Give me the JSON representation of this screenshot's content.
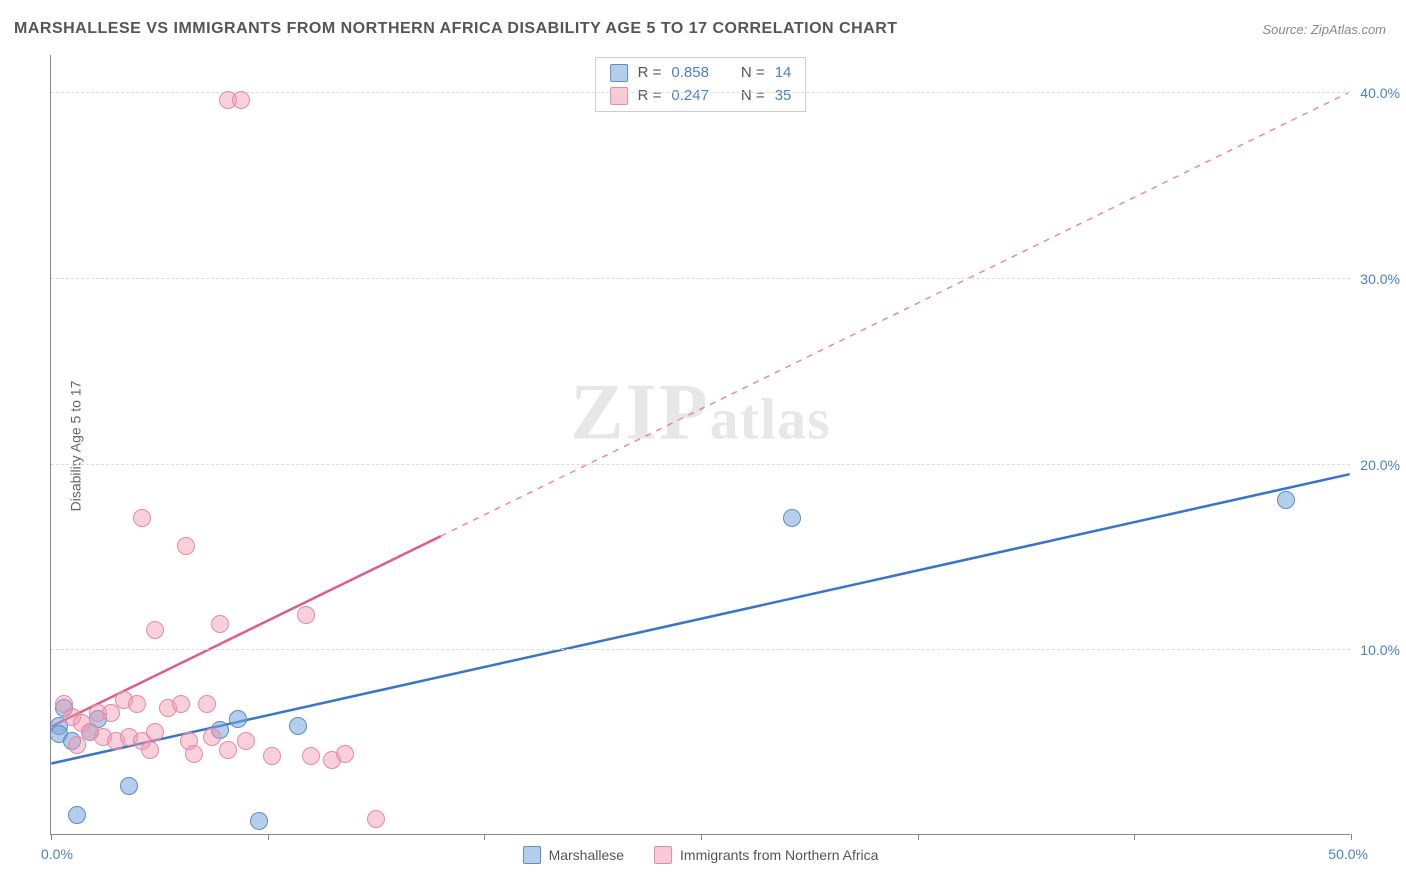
{
  "title": "MARSHALLESE VS IMMIGRANTS FROM NORTHERN AFRICA DISABILITY AGE 5 TO 17 CORRELATION CHART",
  "source": "Source: ZipAtlas.com",
  "y_axis_label": "Disability Age 5 to 17",
  "watermark": "ZIPatlas",
  "chart": {
    "type": "scatter",
    "xlim": [
      0,
      50
    ],
    "ylim": [
      0,
      42
    ],
    "x_origin_label": "0.0%",
    "x_max_label": "50.0%",
    "x_ticks": [
      0,
      8.33,
      16.67,
      25,
      33.33,
      41.67,
      50
    ],
    "y_gridlines": [
      {
        "v": 10,
        "label": "10.0%"
      },
      {
        "v": 20,
        "label": "20.0%"
      },
      {
        "v": 30,
        "label": "30.0%"
      },
      {
        "v": 40,
        "label": "40.0%"
      }
    ],
    "point_radius": 9,
    "series": [
      {
        "key": "blue",
        "label": "Marshallese",
        "color_fill": "rgba(120,165,220,0.55)",
        "color_stroke": "#5a8cc8",
        "stats": {
          "R": "0.858",
          "N": "14"
        },
        "trend": {
          "x1": 0,
          "y1": 3.8,
          "x2": 50,
          "y2": 19.4,
          "solid_until_x": 50,
          "stroke": "#3875c9",
          "width": 2.5
        },
        "points": [
          {
            "x": 1.0,
            "y": 1.0
          },
          {
            "x": 0.5,
            "y": 6.8
          },
          {
            "x": 0.3,
            "y": 5.8
          },
          {
            "x": 0.3,
            "y": 5.4
          },
          {
            "x": 1.8,
            "y": 6.2
          },
          {
            "x": 3.0,
            "y": 2.6
          },
          {
            "x": 6.5,
            "y": 5.6
          },
          {
            "x": 7.2,
            "y": 6.2
          },
          {
            "x": 8.0,
            "y": 0.7
          },
          {
            "x": 9.5,
            "y": 5.8
          },
          {
            "x": 28.5,
            "y": 17.0
          },
          {
            "x": 47.5,
            "y": 18.0
          },
          {
            "x": 0.8,
            "y": 5.0
          },
          {
            "x": 1.5,
            "y": 5.5
          }
        ]
      },
      {
        "key": "pink",
        "label": "Immigrants from Northern Africa",
        "color_fill": "rgba(240,150,175,0.45)",
        "color_stroke": "#e68aa5",
        "stats": {
          "R": "0.247",
          "N": "35"
        },
        "trend": {
          "x1": 0,
          "y1": 5.8,
          "x2": 50,
          "y2": 40.0,
          "solid_until_x": 15,
          "stroke": "#e05a8a",
          "width": 2.5
        },
        "points": [
          {
            "x": 6.8,
            "y": 39.5
          },
          {
            "x": 7.3,
            "y": 39.5
          },
          {
            "x": 3.5,
            "y": 17.0
          },
          {
            "x": 5.2,
            "y": 15.5
          },
          {
            "x": 4.0,
            "y": 11.0
          },
          {
            "x": 6.5,
            "y": 11.3
          },
          {
            "x": 9.8,
            "y": 11.8
          },
          {
            "x": 0.5,
            "y": 7.0
          },
          {
            "x": 0.8,
            "y": 6.3
          },
          {
            "x": 1.2,
            "y": 6.0
          },
          {
            "x": 1.5,
            "y": 5.5
          },
          {
            "x": 1.8,
            "y": 6.5
          },
          {
            "x": 2.0,
            "y": 5.2
          },
          {
            "x": 2.3,
            "y": 6.5
          },
          {
            "x": 2.5,
            "y": 5.0
          },
          {
            "x": 2.8,
            "y": 7.2
          },
          {
            "x": 3.0,
            "y": 5.2
          },
          {
            "x": 3.3,
            "y": 7.0
          },
          {
            "x": 3.5,
            "y": 5.0
          },
          {
            "x": 3.8,
            "y": 4.5
          },
          {
            "x": 4.0,
            "y": 5.5
          },
          {
            "x": 4.5,
            "y": 6.8
          },
          {
            "x": 5.0,
            "y": 7.0
          },
          {
            "x": 5.3,
            "y": 5.0
          },
          {
            "x": 5.5,
            "y": 4.3
          },
          {
            "x": 6.0,
            "y": 7.0
          },
          {
            "x": 6.2,
            "y": 5.2
          },
          {
            "x": 6.8,
            "y": 4.5
          },
          {
            "x": 7.5,
            "y": 5.0
          },
          {
            "x": 8.5,
            "y": 4.2
          },
          {
            "x": 10.0,
            "y": 4.2
          },
          {
            "x": 10.8,
            "y": 4.0
          },
          {
            "x": 11.3,
            "y": 4.3
          },
          {
            "x": 12.5,
            "y": 0.8
          },
          {
            "x": 1.0,
            "y": 4.8
          }
        ]
      }
    ]
  },
  "stats_box": {
    "rows": [
      {
        "swatch": "blue",
        "r_label": "R =",
        "r_val": "0.858",
        "n_label": "N =",
        "n_val": "14"
      },
      {
        "swatch": "pink",
        "r_label": "R =",
        "r_val": "0.247",
        "n_label": "N =",
        "n_val": "35"
      }
    ]
  },
  "bottom_legend": [
    {
      "swatch": "blue",
      "label": "Marshallese"
    },
    {
      "swatch": "pink",
      "label": "Immigrants from Northern Africa"
    }
  ]
}
